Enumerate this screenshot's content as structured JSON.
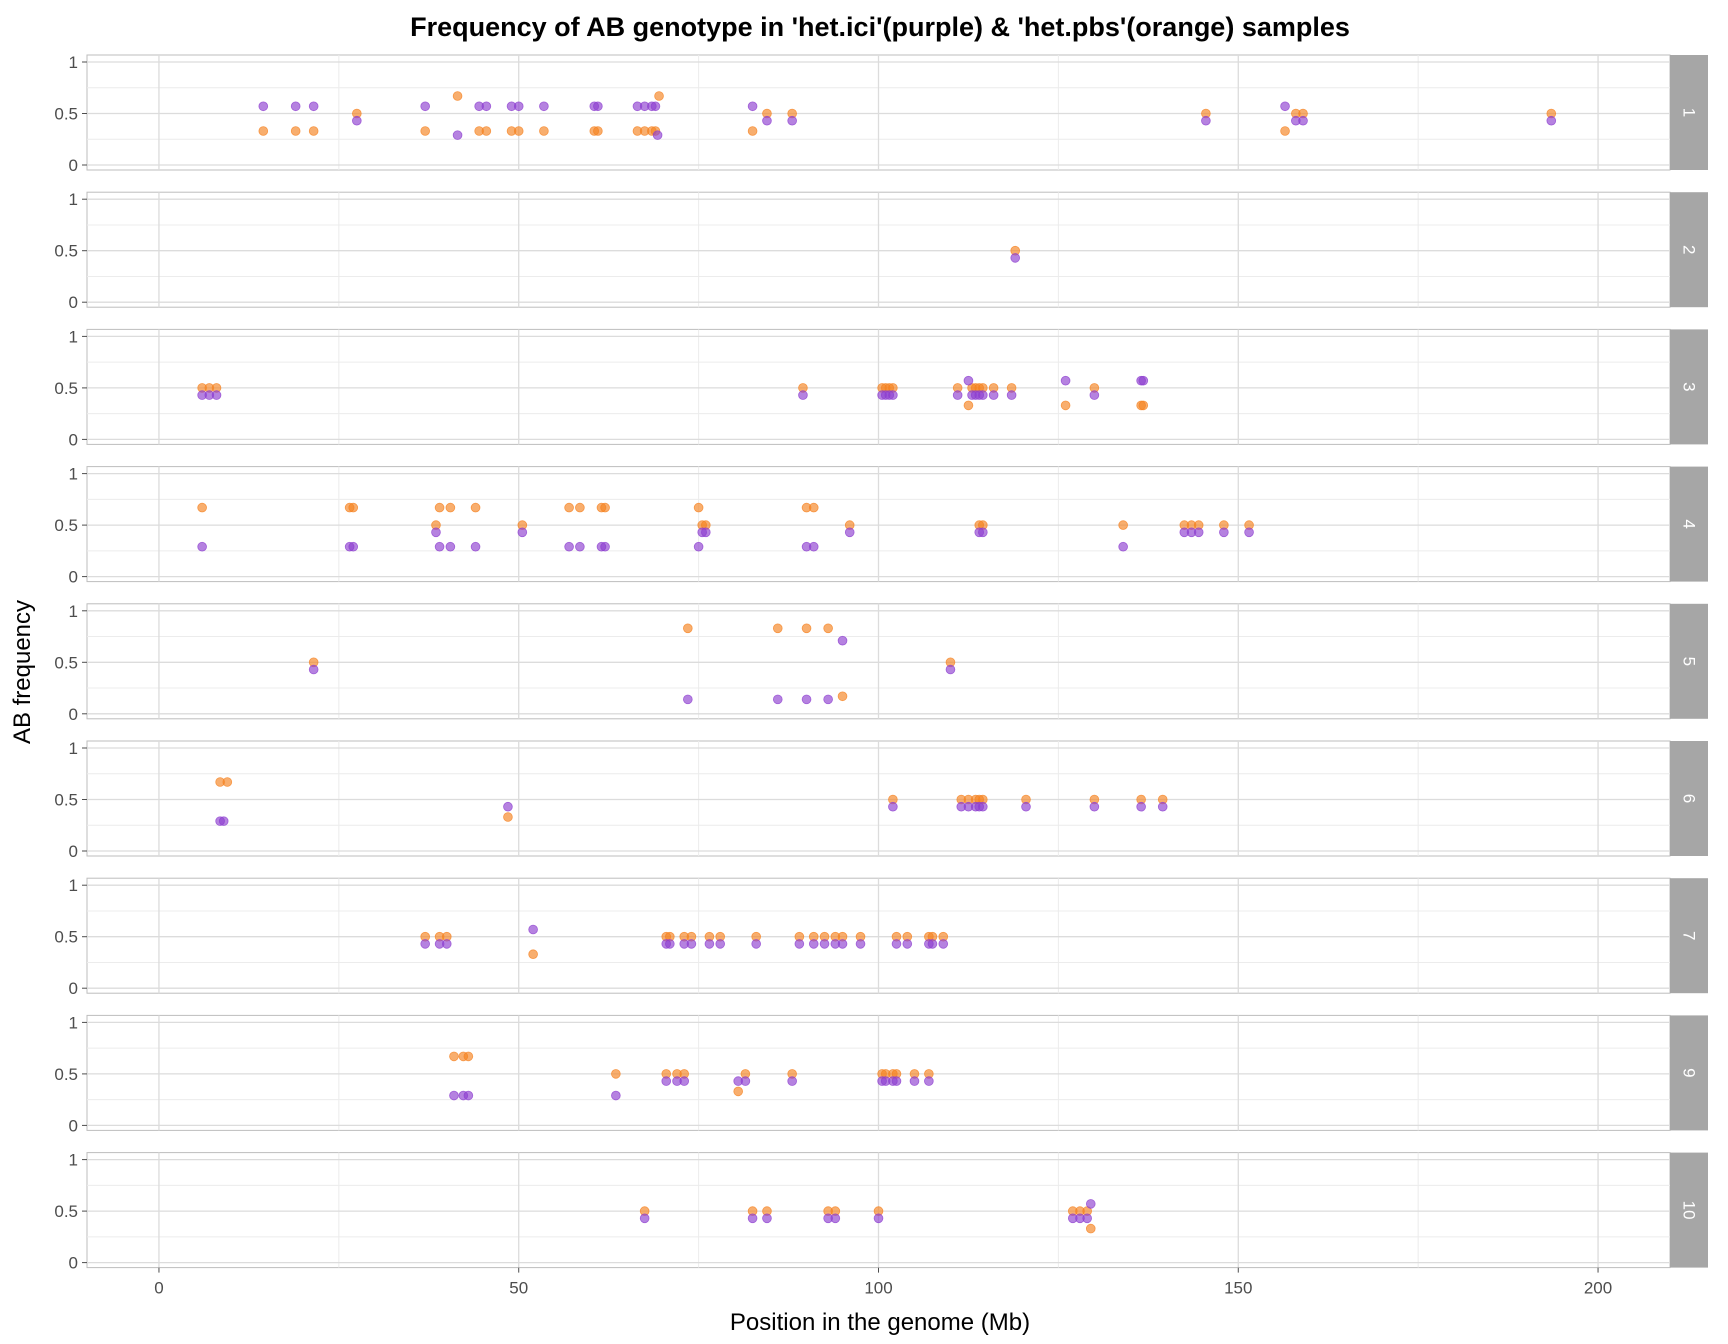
{
  "chart_data": {
    "type": "scatter",
    "title": "Frequency of AB genotype in 'het.ici'(purple) & 'het.pbs'(orange) samples",
    "xlabel": "Position in the genome (Mb)",
    "ylabel": "AB frequency",
    "xlim": [
      -10,
      210
    ],
    "ylim": [
      0,
      1
    ],
    "x_ticks": [
      "0",
      "50",
      "100",
      "150",
      "200"
    ],
    "y_ticks": [
      "0",
      "0.5",
      "1"
    ],
    "grid": true,
    "facet_by": "chromosome",
    "colors": {
      "het.ici": "#8e3fd0",
      "het.pbs": "#f58220",
      "strip": "#a6a6a6",
      "grid": "#dcdcdc"
    },
    "series": [
      {
        "name": "het.ici",
        "color": "#8e3fd0"
      },
      {
        "name": "het.pbs",
        "color": "#f58220"
      }
    ],
    "panels": [
      {
        "label": "1",
        "het_ici": [
          [
            14.5,
            0.57
          ],
          [
            19,
            0.57
          ],
          [
            21.5,
            0.57
          ],
          [
            27.5,
            0.43
          ],
          [
            37,
            0.57
          ],
          [
            41.5,
            0.29
          ],
          [
            44.5,
            0.57
          ],
          [
            45.5,
            0.57
          ],
          [
            49,
            0.57
          ],
          [
            50,
            0.57
          ],
          [
            53.5,
            0.57
          ],
          [
            60.5,
            0.57
          ],
          [
            61,
            0.57
          ],
          [
            66.5,
            0.57
          ],
          [
            67.5,
            0.57
          ],
          [
            68.5,
            0.57
          ],
          [
            69,
            0.57
          ],
          [
            69.3,
            0.29
          ],
          [
            82.5,
            0.57
          ],
          [
            84.5,
            0.43
          ],
          [
            88,
            0.43
          ],
          [
            145.5,
            0.43
          ],
          [
            156.5,
            0.57
          ],
          [
            158,
            0.43
          ],
          [
            159,
            0.43
          ],
          [
            193.5,
            0.43
          ]
        ],
        "het_pbs": [
          [
            14.5,
            0.33
          ],
          [
            19,
            0.33
          ],
          [
            21.5,
            0.33
          ],
          [
            27.5,
            0.5
          ],
          [
            37,
            0.33
          ],
          [
            41.5,
            0.67
          ],
          [
            44.5,
            0.33
          ],
          [
            45.5,
            0.33
          ],
          [
            49,
            0.33
          ],
          [
            50,
            0.33
          ],
          [
            53.5,
            0.33
          ],
          [
            60.5,
            0.33
          ],
          [
            61,
            0.33
          ],
          [
            66.5,
            0.33
          ],
          [
            67.5,
            0.33
          ],
          [
            68.5,
            0.33
          ],
          [
            69,
            0.33
          ],
          [
            69.5,
            0.67
          ],
          [
            82.5,
            0.33
          ],
          [
            84.5,
            0.5
          ],
          [
            88,
            0.5
          ],
          [
            145.5,
            0.5
          ],
          [
            156.5,
            0.33
          ],
          [
            158,
            0.5
          ],
          [
            159,
            0.5
          ],
          [
            193.5,
            0.5
          ]
        ]
      },
      {
        "label": "2",
        "het_ici": [
          [
            119,
            0.43
          ]
        ],
        "het_pbs": [
          [
            119,
            0.5
          ]
        ]
      },
      {
        "label": "3",
        "het_ici": [
          [
            6,
            0.43
          ],
          [
            7,
            0.43
          ],
          [
            8,
            0.43
          ],
          [
            89.5,
            0.43
          ],
          [
            100.5,
            0.43
          ],
          [
            101,
            0.43
          ],
          [
            101.5,
            0.43
          ],
          [
            102,
            0.43
          ],
          [
            111,
            0.43
          ],
          [
            112.5,
            0.57
          ],
          [
            113,
            0.43
          ],
          [
            113.5,
            0.43
          ],
          [
            114,
            0.43
          ],
          [
            114.5,
            0.43
          ],
          [
            116,
            0.43
          ],
          [
            118.5,
            0.43
          ],
          [
            126,
            0.57
          ],
          [
            130,
            0.43
          ],
          [
            136.5,
            0.57
          ],
          [
            136.8,
            0.57
          ]
        ],
        "het_pbs": [
          [
            6,
            0.5
          ],
          [
            7,
            0.5
          ],
          [
            8,
            0.5
          ],
          [
            89.5,
            0.5
          ],
          [
            100.5,
            0.5
          ],
          [
            101,
            0.5
          ],
          [
            101.5,
            0.5
          ],
          [
            102,
            0.5
          ],
          [
            111,
            0.5
          ],
          [
            112.5,
            0.33
          ],
          [
            113,
            0.5
          ],
          [
            113.5,
            0.5
          ],
          [
            114,
            0.5
          ],
          [
            114.5,
            0.5
          ],
          [
            116,
            0.5
          ],
          [
            118.5,
            0.5
          ],
          [
            126,
            0.33
          ],
          [
            130,
            0.5
          ],
          [
            136.5,
            0.33
          ],
          [
            136.8,
            0.33
          ]
        ]
      },
      {
        "label": "4",
        "het_ici": [
          [
            6,
            0.29
          ],
          [
            26.5,
            0.29
          ],
          [
            27,
            0.29
          ],
          [
            38.5,
            0.43
          ],
          [
            39,
            0.29
          ],
          [
            40.5,
            0.29
          ],
          [
            44,
            0.29
          ],
          [
            50.5,
            0.43
          ],
          [
            57,
            0.29
          ],
          [
            58.5,
            0.29
          ],
          [
            61.5,
            0.29
          ],
          [
            62,
            0.29
          ],
          [
            75,
            0.29
          ],
          [
            75.5,
            0.43
          ],
          [
            76,
            0.43
          ],
          [
            90,
            0.29
          ],
          [
            91,
            0.29
          ],
          [
            96,
            0.43
          ],
          [
            114,
            0.43
          ],
          [
            114.5,
            0.43
          ],
          [
            134,
            0.29
          ],
          [
            142.5,
            0.43
          ],
          [
            143.5,
            0.43
          ],
          [
            144.5,
            0.43
          ],
          [
            148,
            0.43
          ],
          [
            151.5,
            0.43
          ]
        ],
        "het_pbs": [
          [
            6,
            0.67
          ],
          [
            26.5,
            0.67
          ],
          [
            27,
            0.67
          ],
          [
            38.5,
            0.5
          ],
          [
            39,
            0.67
          ],
          [
            40.5,
            0.67
          ],
          [
            44,
            0.67
          ],
          [
            50.5,
            0.5
          ],
          [
            57,
            0.67
          ],
          [
            58.5,
            0.67
          ],
          [
            61.5,
            0.67
          ],
          [
            62,
            0.67
          ],
          [
            75,
            0.67
          ],
          [
            75.5,
            0.5
          ],
          [
            76,
            0.5
          ],
          [
            90,
            0.67
          ],
          [
            91,
            0.67
          ],
          [
            96,
            0.5
          ],
          [
            114,
            0.5
          ],
          [
            114.5,
            0.5
          ],
          [
            134,
            0.5
          ],
          [
            142.5,
            0.5
          ],
          [
            143.5,
            0.5
          ],
          [
            144.5,
            0.5
          ],
          [
            148,
            0.5
          ],
          [
            151.5,
            0.5
          ]
        ]
      },
      {
        "label": "5",
        "het_ici": [
          [
            21.5,
            0.43
          ],
          [
            73.5,
            0.14
          ],
          [
            86,
            0.14
          ],
          [
            90,
            0.14
          ],
          [
            93,
            0.14
          ],
          [
            95,
            0.71
          ],
          [
            110,
            0.43
          ]
        ],
        "het_pbs": [
          [
            21.5,
            0.5
          ],
          [
            73.5,
            0.83
          ],
          [
            86,
            0.83
          ],
          [
            90,
            0.83
          ],
          [
            93,
            0.83
          ],
          [
            95,
            0.17
          ],
          [
            110,
            0.5
          ]
        ]
      },
      {
        "label": "6",
        "het_ici": [
          [
            8.5,
            0.29
          ],
          [
            9,
            0.29
          ],
          [
            48.5,
            0.43
          ],
          [
            102,
            0.43
          ],
          [
            111.5,
            0.43
          ],
          [
            112.5,
            0.43
          ],
          [
            113.5,
            0.43
          ],
          [
            114,
            0.43
          ],
          [
            114.5,
            0.43
          ],
          [
            120.5,
            0.43
          ],
          [
            130,
            0.43
          ],
          [
            136.5,
            0.43
          ],
          [
            139.5,
            0.43
          ]
        ],
        "het_pbs": [
          [
            8.5,
            0.67
          ],
          [
            9.5,
            0.67
          ],
          [
            48.5,
            0.33
          ],
          [
            102,
            0.5
          ],
          [
            111.5,
            0.5
          ],
          [
            112.5,
            0.5
          ],
          [
            113.5,
            0.5
          ],
          [
            114,
            0.5
          ],
          [
            114.5,
            0.5
          ],
          [
            120.5,
            0.5
          ],
          [
            130,
            0.5
          ],
          [
            136.5,
            0.5
          ],
          [
            139.5,
            0.5
          ]
        ]
      },
      {
        "label": "7",
        "het_ici": [
          [
            37,
            0.43
          ],
          [
            39,
            0.43
          ],
          [
            40,
            0.43
          ],
          [
            52,
            0.57
          ],
          [
            70.5,
            0.43
          ],
          [
            71,
            0.43
          ],
          [
            73,
            0.43
          ],
          [
            74,
            0.43
          ],
          [
            76.5,
            0.43
          ],
          [
            78,
            0.43
          ],
          [
            83,
            0.43
          ],
          [
            89,
            0.43
          ],
          [
            91,
            0.43
          ],
          [
            92.5,
            0.43
          ],
          [
            94,
            0.43
          ],
          [
            95,
            0.43
          ],
          [
            97.5,
            0.43
          ],
          [
            102.5,
            0.43
          ],
          [
            104,
            0.43
          ],
          [
            107,
            0.43
          ],
          [
            107.5,
            0.43
          ],
          [
            109,
            0.43
          ]
        ],
        "het_pbs": [
          [
            37,
            0.5
          ],
          [
            39,
            0.5
          ],
          [
            40,
            0.5
          ],
          [
            52,
            0.33
          ],
          [
            70.5,
            0.5
          ],
          [
            71,
            0.5
          ],
          [
            73,
            0.5
          ],
          [
            74,
            0.5
          ],
          [
            76.5,
            0.5
          ],
          [
            78,
            0.5
          ],
          [
            83,
            0.5
          ],
          [
            89,
            0.5
          ],
          [
            91,
            0.5
          ],
          [
            92.5,
            0.5
          ],
          [
            94,
            0.5
          ],
          [
            95,
            0.5
          ],
          [
            97.5,
            0.5
          ],
          [
            102.5,
            0.5
          ],
          [
            104,
            0.5
          ],
          [
            107,
            0.5
          ],
          [
            107.5,
            0.5
          ],
          [
            109,
            0.5
          ]
        ]
      },
      {
        "label": "9",
        "het_ici": [
          [
            41,
            0.29
          ],
          [
            42.3,
            0.29
          ],
          [
            43,
            0.29
          ],
          [
            63.5,
            0.29
          ],
          [
            70.5,
            0.43
          ],
          [
            72,
            0.43
          ],
          [
            73,
            0.43
          ],
          [
            80.5,
            0.43
          ],
          [
            81.5,
            0.43
          ],
          [
            88,
            0.43
          ],
          [
            100.5,
            0.43
          ],
          [
            101,
            0.43
          ],
          [
            102,
            0.43
          ],
          [
            102.5,
            0.43
          ],
          [
            105,
            0.43
          ],
          [
            107,
            0.43
          ]
        ],
        "het_pbs": [
          [
            41,
            0.67
          ],
          [
            42.3,
            0.67
          ],
          [
            43,
            0.67
          ],
          [
            63.5,
            0.5
          ],
          [
            70.5,
            0.5
          ],
          [
            72,
            0.5
          ],
          [
            73,
            0.5
          ],
          [
            80.5,
            0.33
          ],
          [
            81.5,
            0.5
          ],
          [
            88,
            0.5
          ],
          [
            100.5,
            0.5
          ],
          [
            101,
            0.5
          ],
          [
            102,
            0.5
          ],
          [
            102.5,
            0.5
          ],
          [
            105,
            0.5
          ],
          [
            107,
            0.5
          ]
        ]
      },
      {
        "label": "10",
        "het_ici": [
          [
            67.5,
            0.43
          ],
          [
            82.5,
            0.43
          ],
          [
            84.5,
            0.43
          ],
          [
            93,
            0.43
          ],
          [
            94,
            0.43
          ],
          [
            100,
            0.43
          ],
          [
            127,
            0.43
          ],
          [
            128,
            0.43
          ],
          [
            129,
            0.43
          ],
          [
            129.5,
            0.57
          ]
        ],
        "het_pbs": [
          [
            67.5,
            0.5
          ],
          [
            82.5,
            0.5
          ],
          [
            84.5,
            0.5
          ],
          [
            93,
            0.5
          ],
          [
            94,
            0.5
          ],
          [
            100,
            0.5
          ],
          [
            127,
            0.5
          ],
          [
            128,
            0.5
          ],
          [
            129,
            0.5
          ],
          [
            129.5,
            0.33
          ]
        ]
      }
    ]
  }
}
